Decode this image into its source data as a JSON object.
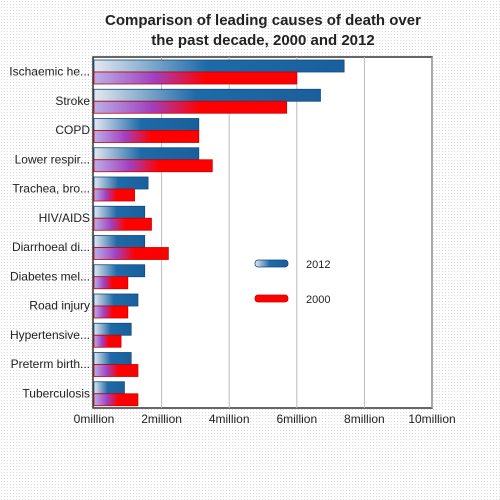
{
  "chart_data": {
    "type": "bar",
    "orientation": "horizontal",
    "title": [
      "Comparison of leading causes of death over",
      "the past decade, 2000 and 2012"
    ],
    "categories": [
      "Ischaemic he...",
      "Stroke",
      "COPD",
      "Lower respir...",
      "Trachea, bro...",
      "HIV/AIDS",
      "Diarrhoeal di...",
      "Diabetes mel...",
      "Road injury",
      "Hypertensive...",
      "Preterm birth...",
      "Tuberculosis"
    ],
    "series": [
      {
        "name": "2012",
        "color": "#1e6aa8",
        "values": [
          7.4,
          6.7,
          3.1,
          3.1,
          1.6,
          1.5,
          1.5,
          1.5,
          1.3,
          1.1,
          1.1,
          0.9
        ]
      },
      {
        "name": "2000",
        "color": "#ff0000",
        "values": [
          6.0,
          5.7,
          3.1,
          3.5,
          1.2,
          1.7,
          2.2,
          1.0,
          1.0,
          0.8,
          1.3,
          1.3
        ]
      }
    ],
    "xlim": [
      0,
      10
    ],
    "xticks": [
      0,
      2,
      4,
      6,
      8,
      10
    ],
    "xtick_labels": [
      "0million",
      "2million",
      "4million",
      "6million",
      "8million",
      "10million"
    ],
    "grid": true,
    "legend_position": "middle-right"
  }
}
